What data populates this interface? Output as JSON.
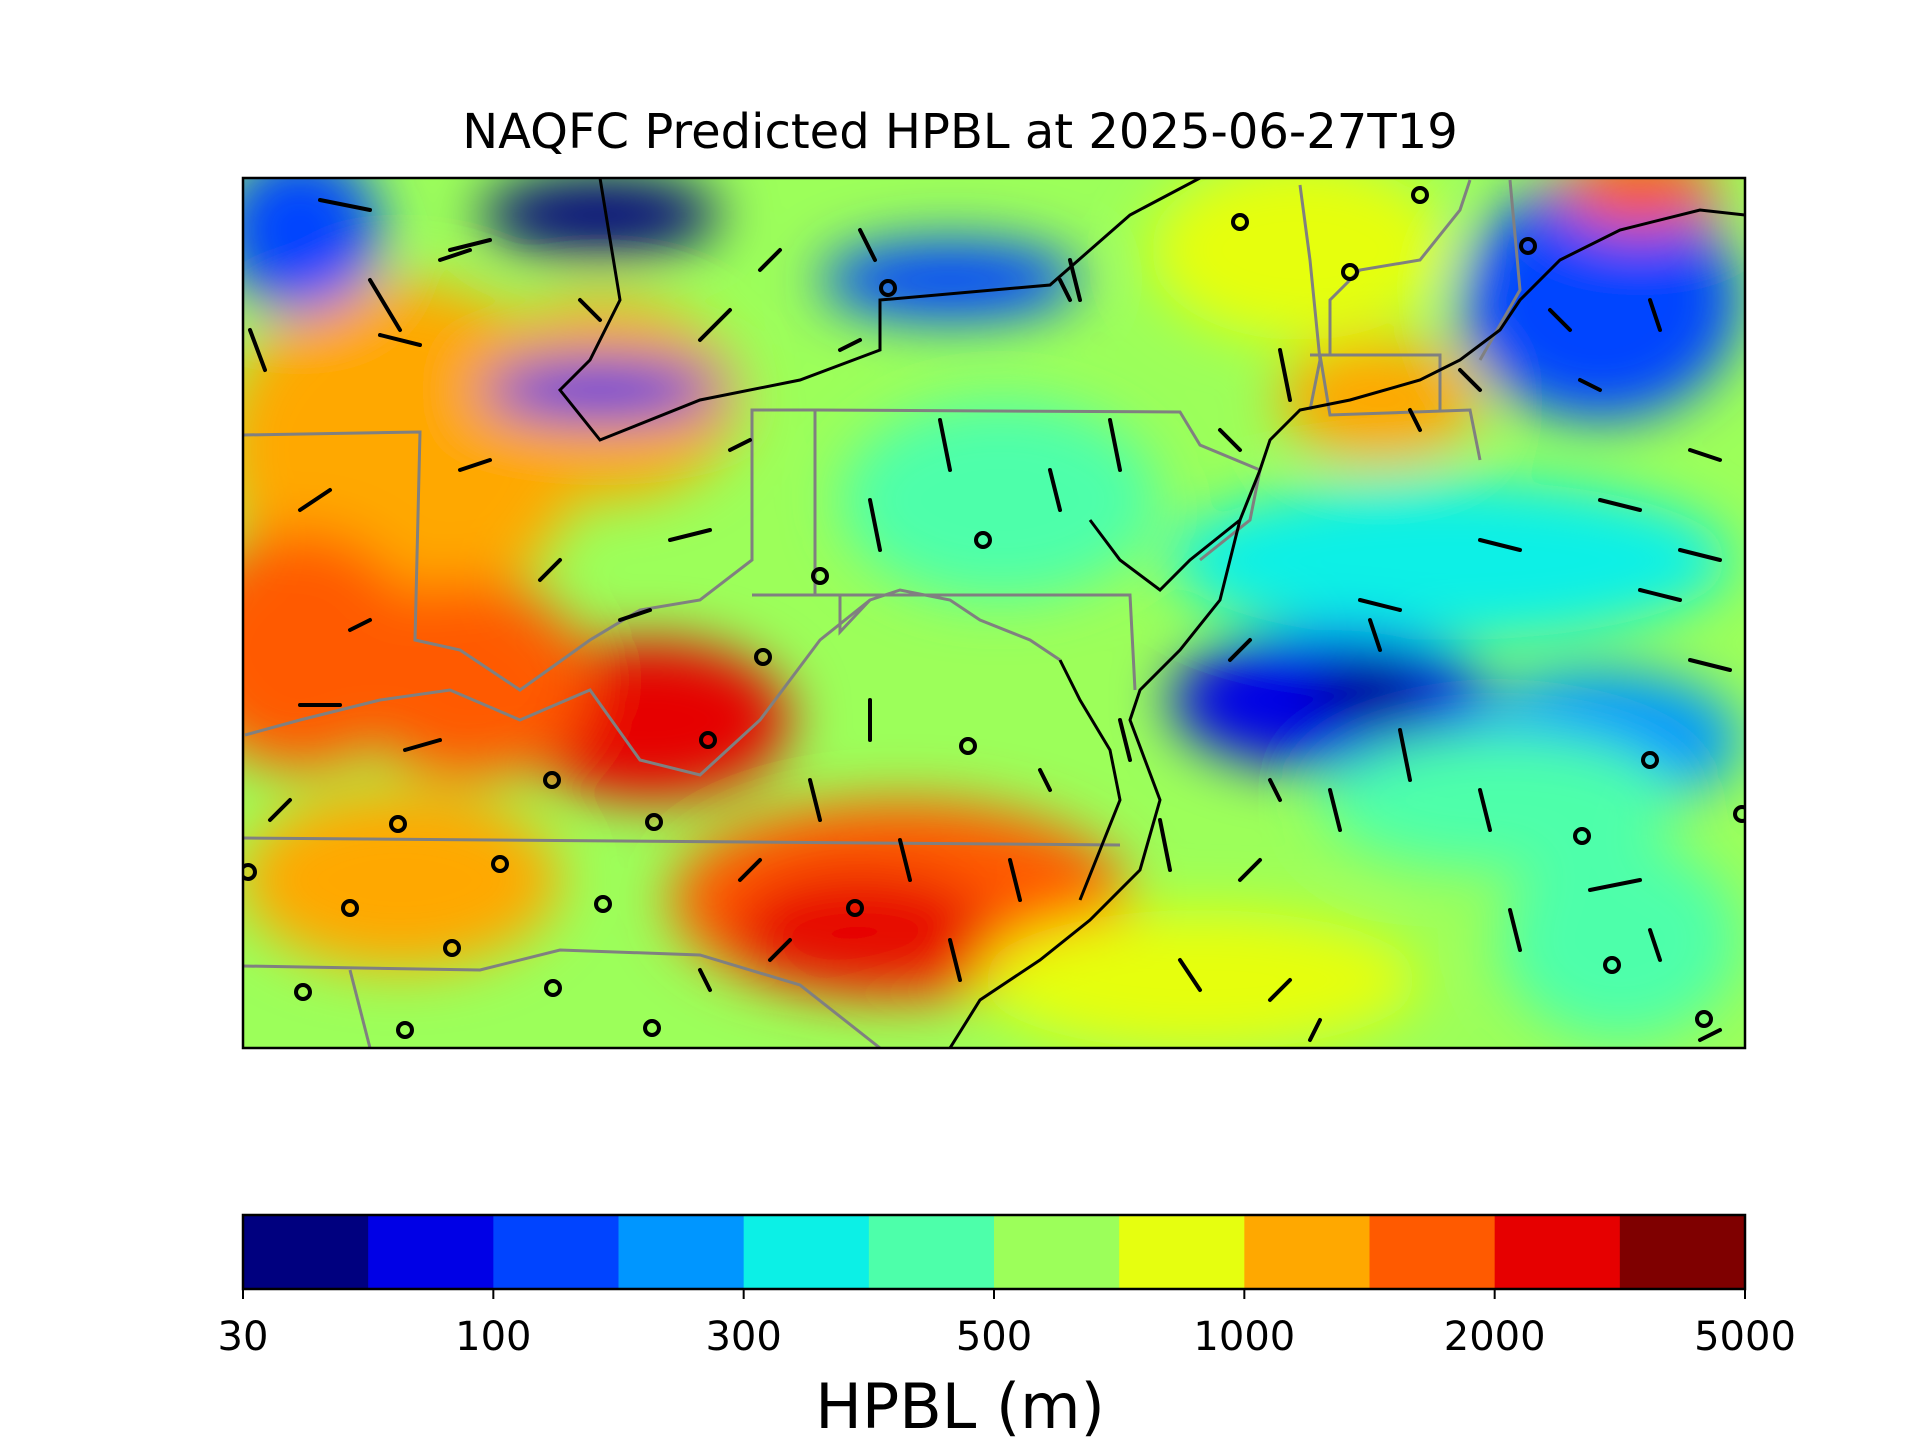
{
  "title": "NAQFC Predicted HPBL at 2025-06-27T19",
  "colorbar": {
    "label": "HPBL (m)",
    "tick_labels": [
      "30",
      "100",
      "300",
      "500",
      "1000",
      "2000",
      "5000"
    ],
    "bin_colors": [
      "#00007f",
      "#0000e6",
      "#0044ff",
      "#0096ff",
      "#0cf0e6",
      "#4dffaa",
      "#9cff5a",
      "#e6ff0f",
      "#ffa800",
      "#ff5a00",
      "#e60000",
      "#7f0000"
    ]
  },
  "chart_data": {
    "type": "heatmap",
    "title": "NAQFC Predicted HPBL at 2025-06-27T19",
    "variable": "HPBL",
    "units": "m",
    "color_levels": [
      30,
      60,
      100,
      200,
      300,
      400,
      500,
      700,
      1000,
      1500,
      2000,
      3000,
      5000
    ],
    "colormap": "jet",
    "overlays": [
      "wind barbs",
      "state borders",
      "coastlines"
    ]
  }
}
